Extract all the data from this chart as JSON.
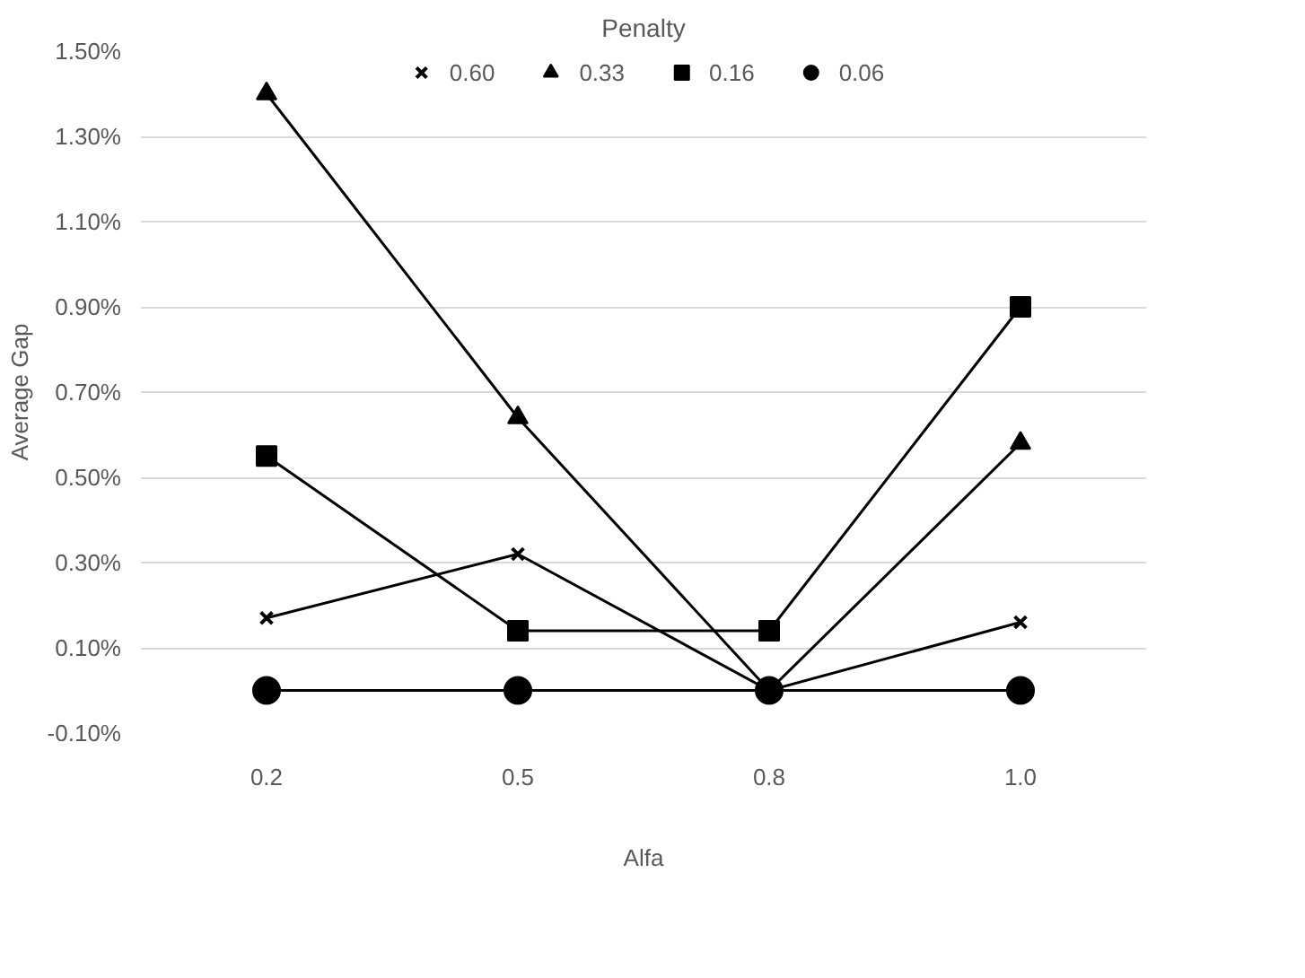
{
  "chart_data": {
    "type": "line",
    "title": "Penalty",
    "xlabel": "Alfa",
    "ylabel": "Average Gap",
    "categories": [
      "0.2",
      "0.5",
      "0.8",
      "1.0"
    ],
    "series": [
      {
        "name": "0.60",
        "color": "#000000",
        "marker": "cross",
        "values": [
          0.17,
          0.32,
          0.0,
          0.16
        ]
      },
      {
        "name": "0.33",
        "color": "#000000",
        "marker": "triangle",
        "values": [
          1.4,
          0.64,
          0.0,
          0.58
        ]
      },
      {
        "name": "0.16",
        "color": "#000000",
        "marker": "square",
        "values": [
          0.55,
          0.14,
          0.14,
          0.9
        ]
      },
      {
        "name": "0.06",
        "color": "#000000",
        "marker": "circle",
        "values": [
          0.0,
          0.0,
          0.0,
          0.0
        ]
      }
    ],
    "ylim": [
      -0.1,
      1.5
    ],
    "yticks": [
      {
        "value": -0.1,
        "label": "-0.10%"
      },
      {
        "value": 0.1,
        "label": "0.10%"
      },
      {
        "value": 0.3,
        "label": "0.30%"
      },
      {
        "value": 0.5,
        "label": "0.50%"
      },
      {
        "value": 0.7,
        "label": "0.70%"
      },
      {
        "value": 0.9,
        "label": "0.90%"
      },
      {
        "value": 1.1,
        "label": "1.10%"
      },
      {
        "value": 1.3,
        "label": "1.30%"
      },
      {
        "value": 1.5,
        "label": "1.50%"
      }
    ],
    "grid": "y",
    "legend": "top",
    "line_style": "solid"
  }
}
